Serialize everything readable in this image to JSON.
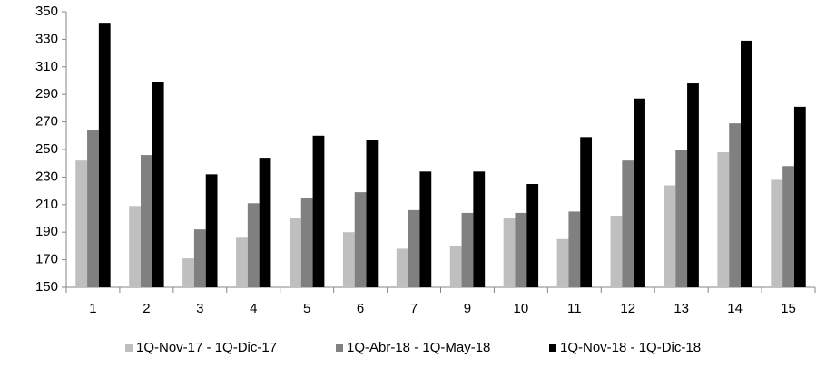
{
  "chart_data": {
    "type": "bar",
    "categories": [
      "1",
      "2",
      "3",
      "4",
      "5",
      "6",
      "7",
      "9",
      "10",
      "11",
      "12",
      "13",
      "14",
      "15"
    ],
    "series": [
      {
        "name": "1Q-Nov-17 - 1Q-Dic-17",
        "color": "#bfbfbf",
        "values": [
          242,
          209,
          171,
          186,
          200,
          190,
          178,
          180,
          200,
          185,
          202,
          224,
          248,
          228
        ]
      },
      {
        "name": "1Q-Abr-18 - 1Q-May-18",
        "color": "#808080",
        "values": [
          264,
          246,
          192,
          211,
          215,
          219,
          206,
          204,
          204,
          205,
          242,
          250,
          269,
          238
        ]
      },
      {
        "name": "1Q-Nov-18 - 1Q-Dic-18",
        "color": "#000000",
        "values": [
          342,
          299,
          232,
          244,
          260,
          257,
          234,
          234,
          225,
          259,
          287,
          298,
          329,
          281
        ]
      }
    ],
    "ylim": [
      150,
      350
    ],
    "yticks": [
      150,
      170,
      190,
      210,
      230,
      250,
      270,
      290,
      310,
      330,
      350
    ],
    "grid": false,
    "legend": "bottom"
  }
}
